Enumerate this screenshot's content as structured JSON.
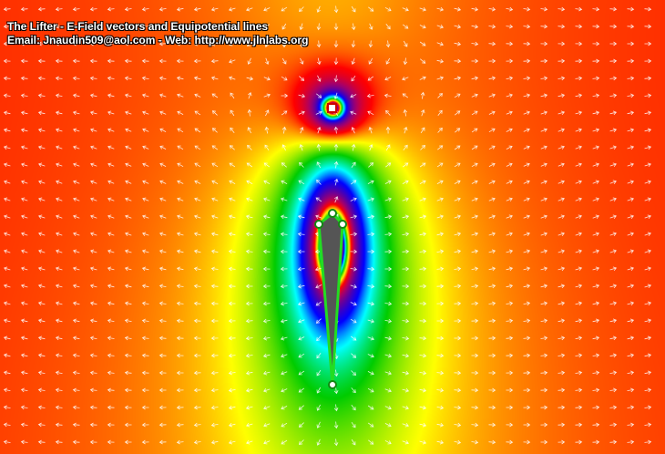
{
  "title": "The Lifter - E-Field vectors and Equipotential lines",
  "contact": "Email: Jnaudin509@aol.com - Web: http://www.jlnlabs.org",
  "colors": {
    "probe_fill": "#ffffff",
    "probe_border": "#cc0000",
    "electrode_wire": "#22dd22",
    "electrode_body": "#555555",
    "node_fill": "#ffffff",
    "node_border": "#118811",
    "vector_arrow": "#ffffff",
    "palette": [
      "#ff0000",
      "#ffff00",
      "#00cc00",
      "#00ffff",
      "#0000ff",
      "#5500aa",
      "#aa0066"
    ]
  },
  "icons": {
    "probe": "red-square-icon",
    "electrode_node": "green-circle-icon",
    "field_vector": "arrow-icon"
  }
}
